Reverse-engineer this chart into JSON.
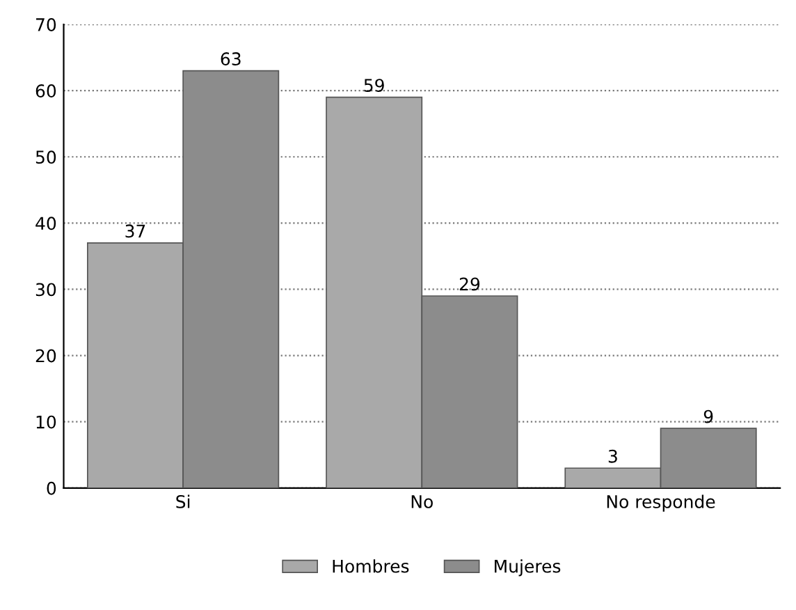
{
  "chart_data": {
    "type": "bar",
    "categories": [
      "Si",
      "No",
      "No responde"
    ],
    "series": [
      {
        "name": "Hombres",
        "color": "#a9a9a9",
        "values": [
          37,
          59,
          3
        ]
      },
      {
        "name": "Mujeres",
        "color": "#8c8c8c",
        "values": [
          63,
          29,
          9
        ]
      }
    ],
    "ylim": [
      0,
      70
    ],
    "yticks": [
      0,
      10,
      20,
      30,
      40,
      50,
      60,
      70
    ],
    "grid": "y",
    "legend": "bottom",
    "data_labels": true
  }
}
